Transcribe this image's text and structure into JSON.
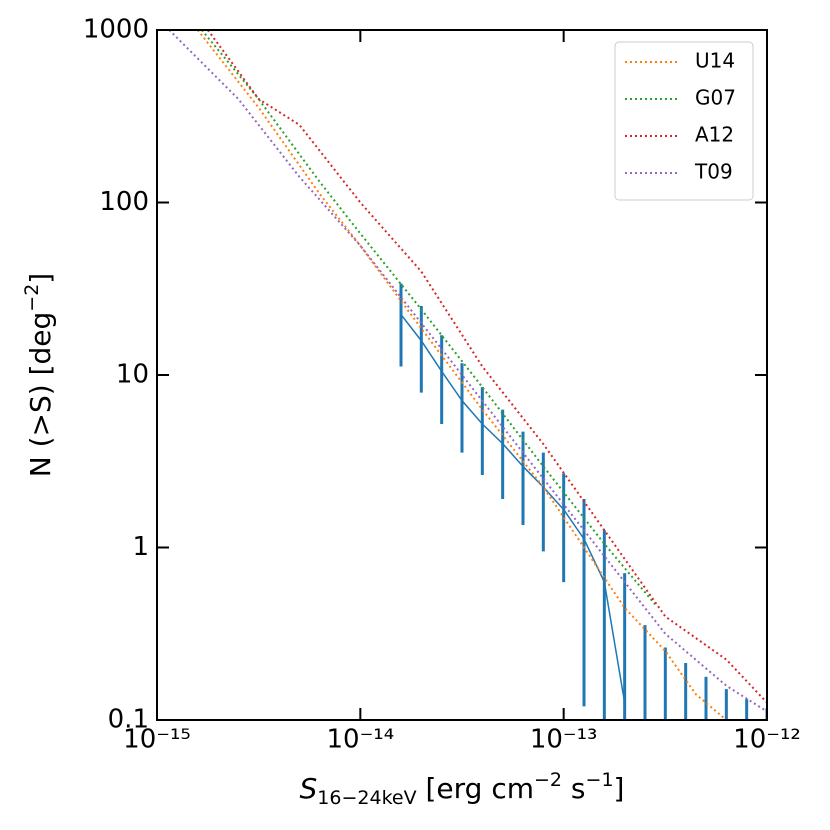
{
  "chart_data": {
    "type": "line",
    "xlabel": [
      "S",
      "16−24keV",
      " [erg cm",
      "−2",
      " s",
      "−1",
      "]"
    ],
    "ylabel": [
      "N (>S) [deg",
      "−2",
      "]"
    ],
    "log_x": true,
    "log_y": true,
    "xlim": [
      1e-15,
      1e-12
    ],
    "ylim": [
      0.1,
      1000
    ],
    "xticks": [
      {
        "value": 1e-15,
        "label": "10⁻¹⁵"
      },
      {
        "value": 1e-14,
        "label": "10⁻¹⁴"
      },
      {
        "value": 1e-13,
        "label": "10⁻¹³"
      },
      {
        "value": 1e-12,
        "label": "10⁻¹²"
      }
    ],
    "yticks": [
      0.1,
      1,
      10,
      100,
      1000
    ],
    "legend": "upper right",
    "series": [
      {
        "name": "U14",
        "color": "#ff7f0e",
        "x": [
          1.585e-15,
          3.162e-15,
          6.31e-15,
          1e-14,
          1.995e-14,
          3.981e-14,
          7.943e-14,
          1.259e-13,
          1.995e-13,
          3.162e-13,
          4.467e-13,
          6.31e-13
        ],
        "values": [
          1000,
          354.8,
          112.2,
          56.2,
          18.6,
          6.31,
          2.24,
          1.0,
          0.447,
          0.251,
          0.141,
          0.1
        ]
      },
      {
        "name": "G07",
        "color": "#2ca02c",
        "x": [
          1.66e-15,
          3.162e-15,
          6.31e-15,
          1e-14,
          1.995e-14,
          3.981e-14,
          7.943e-14,
          1.585e-13,
          2.818e-13
        ],
        "values": [
          1000,
          398,
          131.8,
          66.1,
          24.0,
          8.51,
          2.95,
          1.05,
          0.468
        ]
      },
      {
        "name": "A12",
        "color": "#d62728",
        "x": [
          1.778e-15,
          3.162e-15,
          5.012e-15,
          1e-14,
          1.995e-14,
          3.981e-14,
          7.943e-14,
          1.585e-13,
          3.162e-13,
          6.31e-13,
          1e-12
        ],
        "values": [
          1000,
          398,
          282,
          100,
          39.8,
          11.2,
          3.98,
          1.26,
          0.398,
          0.224,
          0.126
        ]
      },
      {
        "name": "T09",
        "color": "#9467bd",
        "x": [
          1.148e-15,
          2.512e-15,
          5.012e-15,
          1e-14,
          1.995e-14,
          3.981e-14,
          7.943e-14,
          1.585e-13,
          3.162e-13,
          6.31e-13,
          1e-12
        ],
        "values": [
          1000,
          398,
          141,
          56.2,
          20.0,
          7.08,
          2.51,
          0.891,
          0.316,
          0.158,
          0.112
        ]
      }
    ],
    "measured": {
      "color": "#1f77b4",
      "x": [
        1.585e-14,
        1.995e-14,
        2.512e-14,
        3.162e-14,
        3.981e-14,
        5.012e-14,
        6.31e-14,
        7.943e-14,
        1e-13,
        1.259e-13,
        1.585e-13,
        1.995e-13,
        2.512e-13,
        3.162e-13,
        3.981e-13,
        5.012e-13,
        6.31e-13,
        7.943e-13,
        1e-12
      ],
      "values": [
        22.4,
        15.8,
        10.5,
        7.1,
        5.2,
        4.0,
        2.95,
        2.24,
        1.66,
        1.12,
        0.63,
        0.126,
        null,
        null,
        null,
        null,
        null,
        null,
        null
      ],
      "upper": [
        33.9,
        25.1,
        17.0,
        11.7,
        8.5,
        6.3,
        4.7,
        3.55,
        2.69,
        1.91,
        1.26,
        0.71,
        0.355,
        0.263,
        0.214,
        0.178,
        0.151,
        0.132,
        0.117
      ],
      "lower": [
        11.2,
        7.9,
        5.2,
        3.55,
        2.63,
        1.91,
        1.35,
        0.95,
        0.63,
        0.12,
        0,
        0,
        0,
        0,
        0,
        0,
        0,
        0,
        0
      ]
    }
  }
}
